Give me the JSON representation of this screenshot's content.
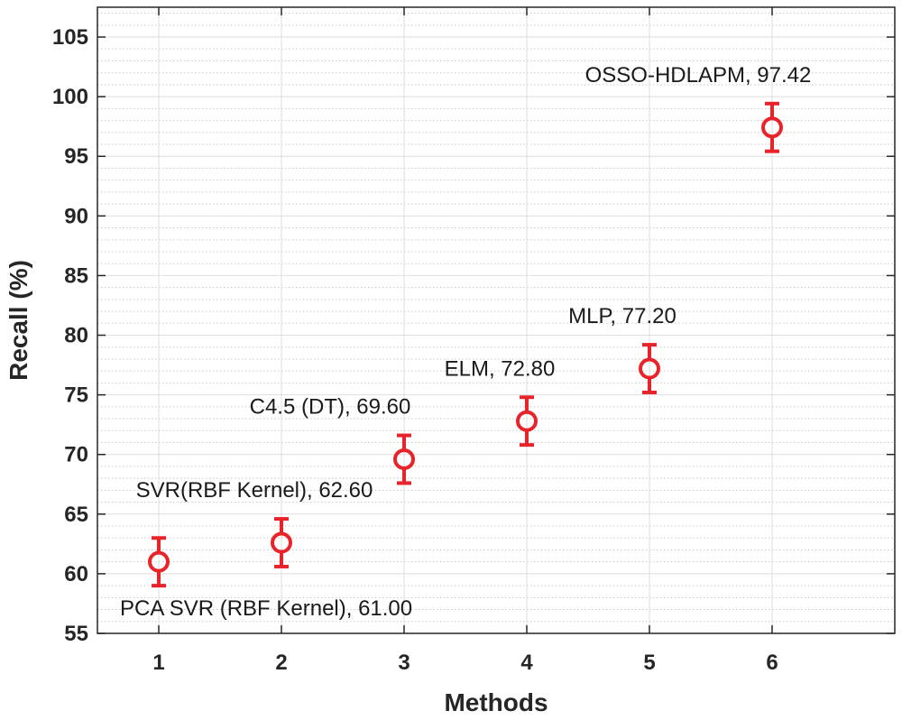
{
  "chart_data": {
    "type": "scatter",
    "title": "",
    "xlabel": "Methods",
    "ylabel": "Recall (%)",
    "xlim": [
      0.5,
      7
    ],
    "ylim": [
      55,
      107.5
    ],
    "xticks": [
      1,
      2,
      3,
      4,
      5,
      6
    ],
    "yticks": [
      55,
      60,
      65,
      70,
      75,
      80,
      85,
      90,
      95,
      100,
      105
    ],
    "grid": true,
    "minor_grid": true,
    "marker_color": "#e8232a",
    "points": [
      {
        "x": 1,
        "y": 61.0,
        "err": 2.0,
        "label": "PCA SVR (RBF Kernel), 61.00",
        "label_position": "below-right"
      },
      {
        "x": 2,
        "y": 62.6,
        "err": 2.0,
        "label": "SVR(RBF Kernel), 62.60",
        "label_position": "above"
      },
      {
        "x": 3,
        "y": 69.6,
        "err": 2.0,
        "label": "C4.5 (DT), 69.60",
        "label_position": "above-left"
      },
      {
        "x": 4,
        "y": 72.8,
        "err": 2.0,
        "label": "ELM, 72.80",
        "label_position": "above"
      },
      {
        "x": 5,
        "y": 77.2,
        "err": 2.0,
        "label": "MLP, 77.20",
        "label_position": "above"
      },
      {
        "x": 6,
        "y": 97.42,
        "err": 2.0,
        "label": "OSSO-HDLAPM, 97.42",
        "label_position": "above-left"
      }
    ]
  }
}
